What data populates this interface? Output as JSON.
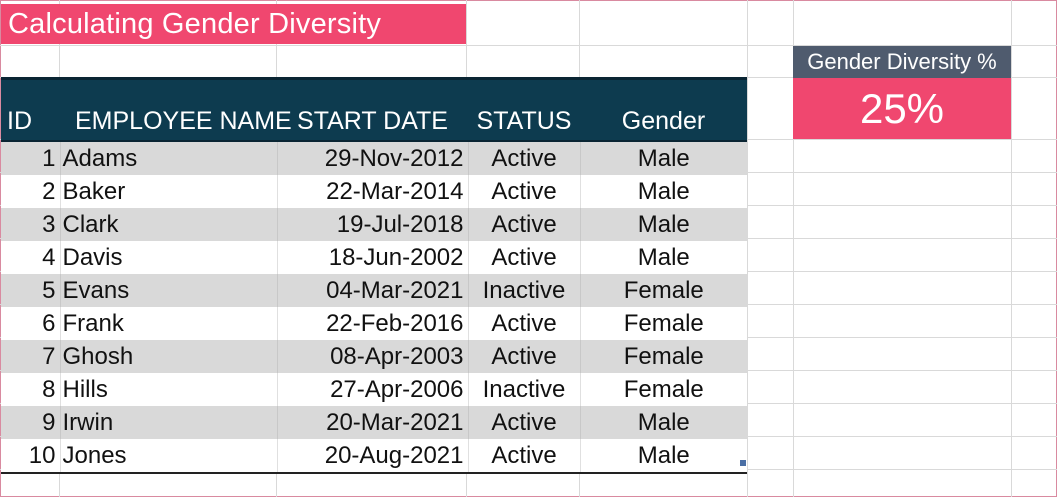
{
  "sheet": {
    "title": "Calculating Gender Diversity"
  },
  "table": {
    "headers": {
      "id": "ID",
      "name": "EMPLOYEE NAME",
      "start_date": "START DATE",
      "status": "STATUS",
      "gender": "Gender"
    },
    "rows": [
      {
        "id": "1",
        "name": "Adams",
        "start_date": "29-Nov-2012",
        "status": "Active",
        "gender": "Male"
      },
      {
        "id": "2",
        "name": "Baker",
        "start_date": "22-Mar-2014",
        "status": "Active",
        "gender": "Male"
      },
      {
        "id": "3",
        "name": "Clark",
        "start_date": "19-Jul-2018",
        "status": "Active",
        "gender": "Male"
      },
      {
        "id": "4",
        "name": "Davis",
        "start_date": "18-Jun-2002",
        "status": "Active",
        "gender": "Male"
      },
      {
        "id": "5",
        "name": "Evans",
        "start_date": "04-Mar-2021",
        "status": "Inactive",
        "gender": "Female"
      },
      {
        "id": "6",
        "name": "Frank",
        "start_date": "22-Feb-2016",
        "status": "Active",
        "gender": "Female"
      },
      {
        "id": "7",
        "name": "Ghosh",
        "start_date": "08-Apr-2003",
        "status": "Active",
        "gender": "Female"
      },
      {
        "id": "8",
        "name": "Hills",
        "start_date": "27-Apr-2006",
        "status": "Inactive",
        "gender": "Female"
      },
      {
        "id": "9",
        "name": "Irwin",
        "start_date": "20-Mar-2021",
        "status": "Active",
        "gender": "Male"
      },
      {
        "id": "10",
        "name": "Jones",
        "start_date": "20-Aug-2021",
        "status": "Active",
        "gender": "Male"
      }
    ]
  },
  "kpi": {
    "label": "Gender Diversity %",
    "value": "25%"
  },
  "colors": {
    "accent_pink": "#f0476f",
    "header_navy": "#0d3b4f",
    "kpi_label_slate": "#4f5b6e",
    "band_gray": "#d9d9d9"
  }
}
